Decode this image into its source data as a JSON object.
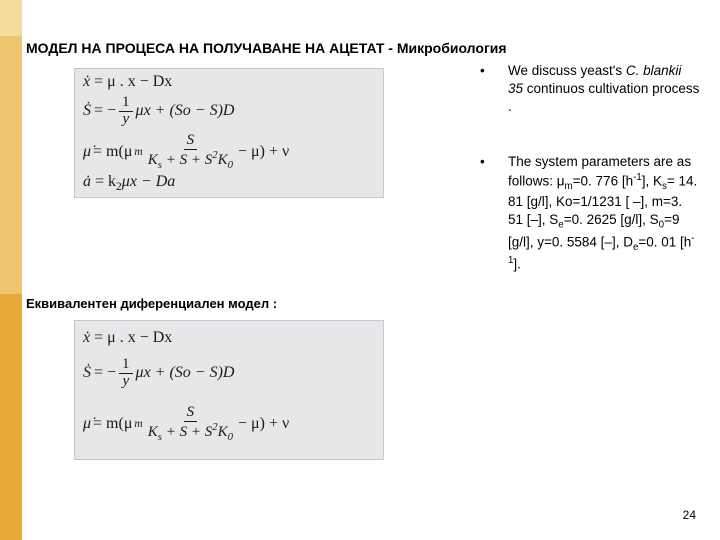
{
  "title": "МОДЕЛ НА ПРОЦЕСА НА ПОЛУЧАВАНЕ НА АЦЕТАТ - Микробиология",
  "subtitle": "Еквивалентен диференциален модел :",
  "page_number": "24",
  "bullets": [
    {
      "text_parts": [
        {
          "t": "We discuss yeast's ",
          "italic": false
        },
        {
          "t": "C. blankii 35",
          "italic": true
        },
        {
          "t": " continuos cultivation process .",
          "italic": false
        }
      ]
    },
    {
      "html": "The system parameters are as follows: μ<sub>m</sub>=0. 776 [h<sup>-1</sup>], K<sub>s</sub>= 14. 81 [g/l], Ko=1/1231 [ –], m=3. 51 [–], S<sub>e</sub>=0. 2625 [g/l], S<sub>0</sub>=9 [g/l], y=0. 5584 [–], D<sub>e</sub>=0. 01 [h<sup>-1</sup>]."
    }
  ],
  "colors": {
    "sidebar_outer": "#e9a938",
    "sidebar_mid": "#efc66f",
    "sidebar_light": "#f4dc9e",
    "formula_bg": "#e7e7e9",
    "formula_border": "#c8c8cc"
  },
  "formula_box1": {
    "eq1": "= μ . x − Dx",
    "eq2_pre": "= −",
    "eq2_frac_num": "1",
    "eq2_frac_den": "y",
    "eq2_post": " μx + (So − S)D",
    "eq3_pre": "= m(μ",
    "eq3_sub": "m",
    "eq3_frac_num": "S",
    "eq3_frac_den_html": "K<sub>s</sub> + S + S<sup>2</sup>K<sub>0</sub>",
    "eq3_post": " − μ) + ν",
    "eq4_pre": "= k",
    "eq4_sub": "2",
    "eq4_post": "μx − Da"
  },
  "formula_box2": {
    "eq1": "= μ . x − Dx",
    "eq2_pre": "= −",
    "eq2_frac_num": "1",
    "eq2_frac_den": "y",
    "eq2_post": " μx + (So − S)D",
    "eq3_pre": "= m(μ",
    "eq3_sub": "m",
    "eq3_frac_num": "S",
    "eq3_frac_den_html": "K<sub>s</sub> + S + S<sup>2</sup>K<sub>0</sub>",
    "eq3_post": " − μ) + ν"
  }
}
